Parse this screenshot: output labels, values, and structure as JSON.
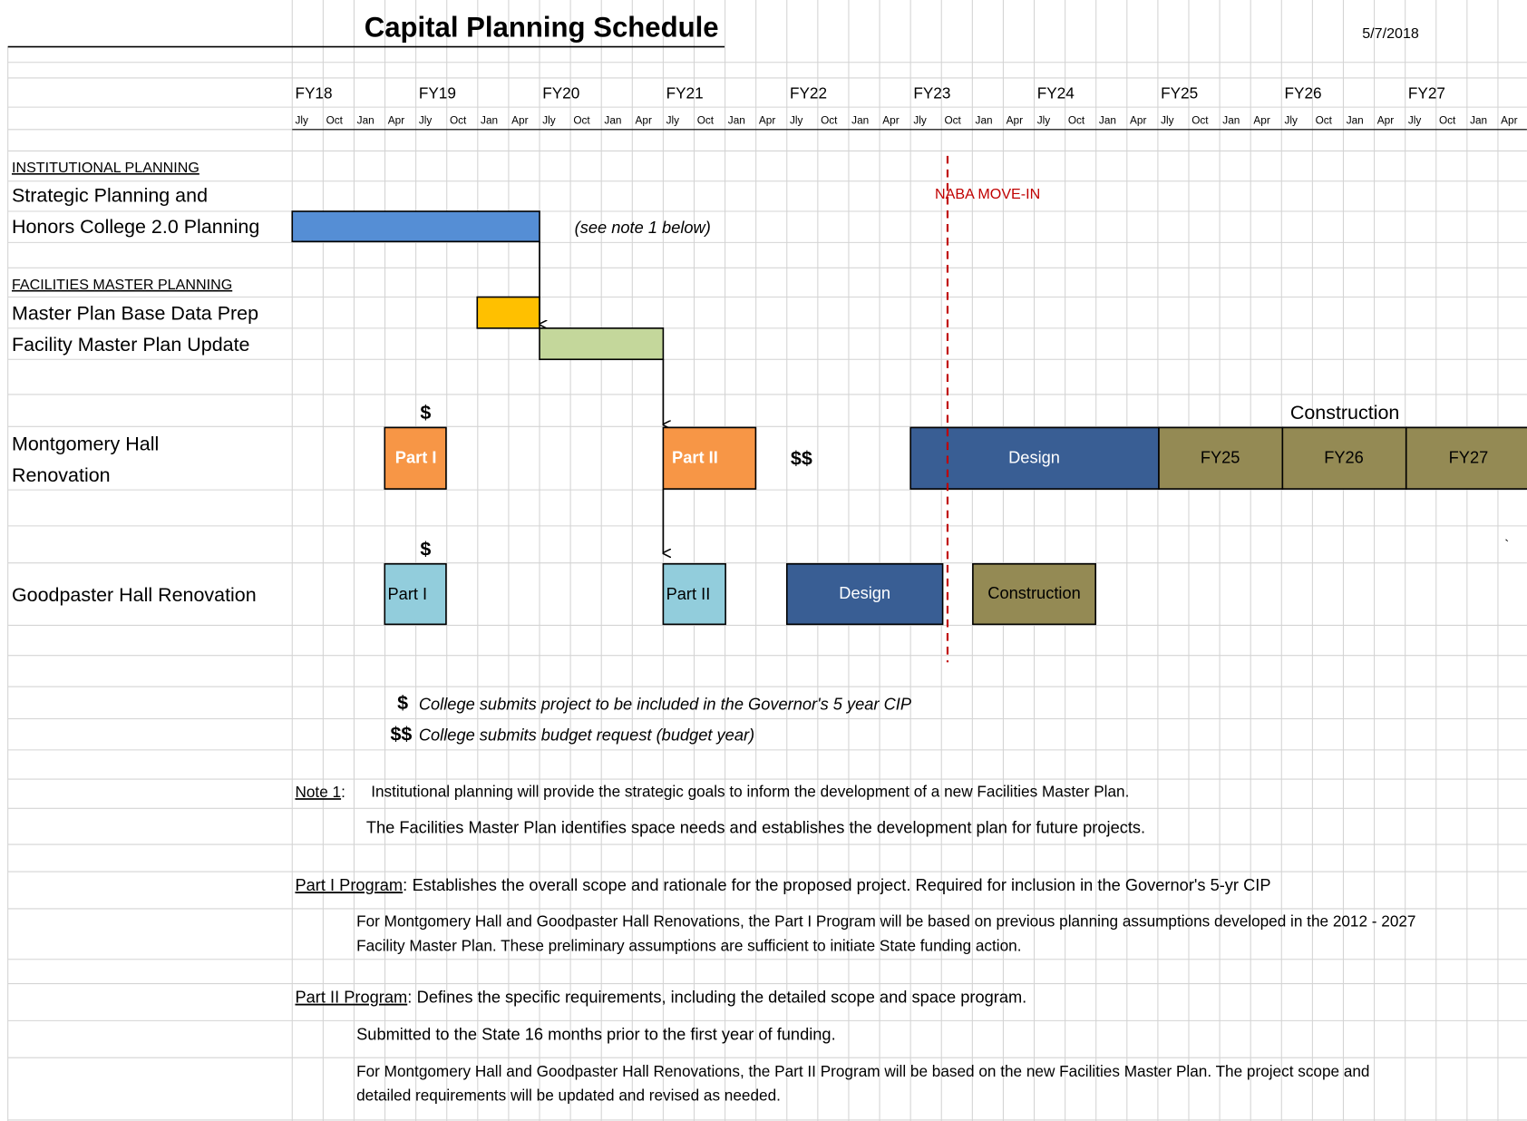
{
  "header": {
    "title": "Capital Planning Schedule",
    "date": "5/7/2018"
  },
  "timeline": {
    "fiscal_years": [
      "FY18",
      "FY19",
      "FY20",
      "FY21",
      "FY22",
      "FY23",
      "FY24",
      "FY25",
      "FY26",
      "FY27"
    ],
    "months": [
      "Jly",
      "Oct",
      "Jan",
      "Apr"
    ]
  },
  "labels": {
    "institutional": "INSTITUTIONAL PLANNING",
    "strategic": [
      "Strategic Planning and",
      "Honors College 2.0 Planning"
    ],
    "facilities": "FACILITIES MASTER PLANNING",
    "base_data": "Master Plan Base Data Prep",
    "fmp_update": "Facility Master Plan Update",
    "montgomery": [
      "Montgomery Hall",
      "Renovation"
    ],
    "goodpaster": "Goodpaster Hall Renovation"
  },
  "annotations": {
    "see_note": "(see note 1 below)",
    "naba": "NABA MOVE-IN",
    "construction": "Construction",
    "dollar": "$",
    "double_dollar": "$$",
    "backtick": "`"
  },
  "bars": {
    "montgomery": {
      "part1": "Part I",
      "part2": "Part II",
      "design": "Design",
      "construction_years": [
        "FY25",
        "FY26",
        "FY27"
      ]
    },
    "goodpaster": {
      "part1": "Part I",
      "part2": "Part II",
      "design": "Design",
      "construction": "Construction"
    }
  },
  "legend": [
    {
      "symbol": "$",
      "text": "College submits project to be included in the Governor's 5 year CIP"
    },
    {
      "symbol": "$$",
      "text": "College submits budget request (budget year)"
    }
  ],
  "notes": [
    {
      "label": "Note 1",
      "sep": ":",
      "lines": [
        "Institutional planning will provide the strategic goals to inform the development of a new Facilities Master Plan.",
        "The Facilities Master Plan identifies space needs and establishes the development plan for future projects."
      ]
    },
    {
      "label": "Part I Program",
      "sep": ":",
      "lines": [
        "Establishes the overall scope and rationale for the proposed project.  Required for inclusion in the Governor's 5-yr CIP"
      ],
      "details": [
        "For Montgomery Hall and Goodpaster Hall Renovations, the Part I Program will be based on previous planning assumptions developed in the 2012 - 2027",
        "Facility Master Plan.  These preliminary assumptions are sufficient to initiate State funding action."
      ]
    },
    {
      "label": "Part II Program",
      "sep": ":",
      "lines": [
        "Defines the specific requirements, including the detailed scope and space program."
      ],
      "details": [
        "Submitted to the State 16 months prior to the first year of funding.",
        "For Montgomery Hall and Goodpaster Hall Renovations, the Part II Program will be based on the new Facilities Master Plan.  The project scope and",
        "detailed requirements will be updated and revised as needed."
      ]
    }
  ]
}
